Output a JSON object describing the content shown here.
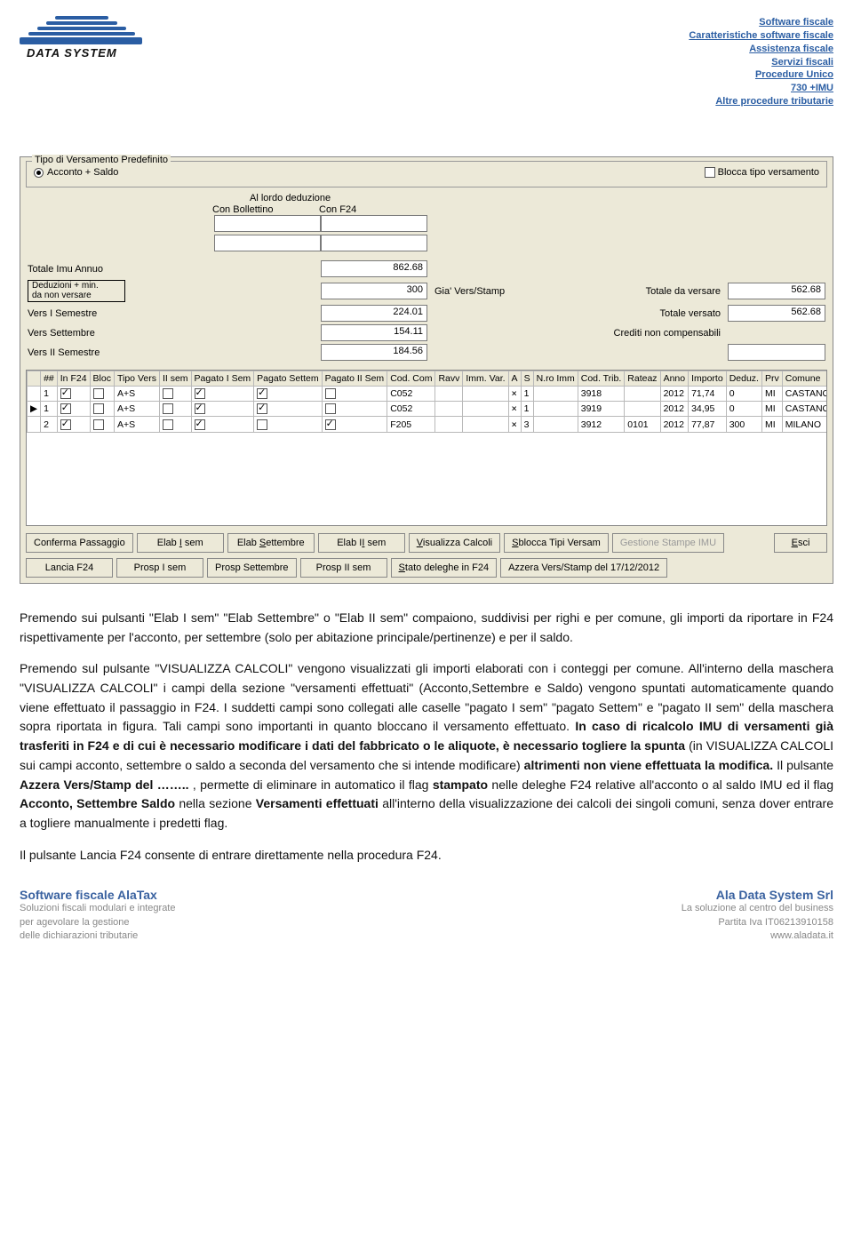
{
  "brand_color": "#2a5da3",
  "logo": {
    "label": "DATA SYSTEM"
  },
  "header_links": [
    "Software fiscale",
    "Caratteristiche software fiscale",
    "Assistenza fiscale",
    "Servizi fiscali",
    "Procedure Unico",
    "730 +IMU",
    "Altre procedure tributarie"
  ],
  "dialog": {
    "fieldset_legend": "Tipo di Versamento Predefinito",
    "radio_label": "Acconto + Saldo",
    "blocca_label": "Blocca tipo versamento",
    "deduzione_header": "Al lordo deduzione",
    "col_bollettino": "Con Bollettino",
    "col_f24": "Con F24",
    "rows": {
      "totale_imu": {
        "label": "Totale Imu Annuo",
        "f24": "862.68"
      },
      "deduzioni": {
        "label_l1": "Deduzioni + min.",
        "label_l2": "da non versare",
        "f24": "300",
        "gia": "Gia' Vers/Stamp",
        "totale_versare_lbl": "Totale da versare",
        "totale_versare_val": "562.68"
      },
      "vers1": {
        "label": "Vers I Semestre",
        "f24": "224.01",
        "totale_versato_lbl": "Totale versato",
        "totale_versato_val": "562.68"
      },
      "vers_set": {
        "label": "Vers Settembre",
        "f24": "154.11",
        "crediti_lbl": "Crediti non compensabili"
      },
      "vers2": {
        "label": "Vers II Semestre",
        "f24": "184.56"
      }
    },
    "table": {
      "headers": [
        "##",
        "In F24",
        "Bloc",
        "Tipo Vers",
        "II sem",
        "Pagato I Sem",
        "Pagato Settem",
        "Pagato II Sem",
        "Cod. Com",
        "Ravv",
        "Imm. Var.",
        "A",
        "S",
        "N.ro Imm",
        "Cod. Trib.",
        "Rateaz",
        "Anno",
        "Importo",
        "Deduz.",
        "Prv",
        "Comune"
      ],
      "rows": [
        {
          "ptr": "",
          "n": "1",
          "inF24": true,
          "bloc": false,
          "tipo": "A+S",
          "iiSem": false,
          "p1": true,
          "pS": true,
          "p2": false,
          "cod": "C052",
          "ravv": "",
          "immVar": "",
          "a": "×",
          "s": "1",
          "nroImm": "",
          "codTrib": "3918",
          "rateaz": "",
          "anno": "2012",
          "importo": "71,74",
          "deduz": "0",
          "prv": "MI",
          "comune": "CASTANO PRIMO"
        },
        {
          "ptr": "▶",
          "n": "1",
          "inF24": true,
          "bloc": false,
          "tipo": "A+S",
          "iiSem": false,
          "p1": true,
          "pS": true,
          "p2": false,
          "cod": "C052",
          "ravv": "",
          "immVar": "",
          "a": "×",
          "s": "1",
          "nroImm": "",
          "codTrib": "3919",
          "rateaz": "",
          "anno": "2012",
          "importo": "34,95",
          "deduz": "0",
          "prv": "MI",
          "comune": "CASTANO PRIMO"
        },
        {
          "ptr": "",
          "n": "2",
          "inF24": true,
          "bloc": false,
          "tipo": "A+S",
          "iiSem": false,
          "p1": true,
          "pS": false,
          "p2": true,
          "cod": "F205",
          "ravv": "",
          "immVar": "",
          "a": "×",
          "s": "3",
          "nroImm": "",
          "codTrib": "3912",
          "rateaz": "0101",
          "anno": "2012",
          "importo": "77,87",
          "deduz": "300",
          "prv": "MI",
          "comune": "MILANO"
        }
      ]
    },
    "buttons_row1": {
      "conferma": "Conferma Passaggio",
      "elab1": "Elab I sem",
      "elabS": "Elab Settembre",
      "elab2": "Elab II sem",
      "visualizza": "Visualizza Calcoli",
      "sblocca": "Sblocca Tipi Versam",
      "gestione": "Gestione Stampe IMU",
      "esci": "Esci"
    },
    "buttons_row2": {
      "lancia": "Lancia F24",
      "prosp1": "Prosp I sem",
      "prospS": "Prosp Settembre",
      "prosp2": "Prosp II sem",
      "stato": "Stato deleghe in F24",
      "azzera": "Azzera Vers/Stamp del 17/12/2012"
    }
  },
  "body": {
    "p1a": "Premendo sui pulsanti \"Elab I sem\" \"Elab Settembre\" o \"Elab II sem\" compaiono, suddivisi per righi e per comune, gli importi da riportare in F24 rispettivamente per l'acconto, per settembre (solo per abitazione principale/pertinenze) e per il saldo.",
    "p2a": "Premendo sul pulsante \"VISUALIZZA CALCOLI\" vengono visualizzati gli importi elaborati con i conteggi per comune. All'interno della maschera \"VISUALIZZA CALCOLI\" i campi della sezione \"versamenti effettuati\" (Acconto,Settembre e Saldo) vengono spuntati automaticamente quando viene effettuato il passaggio in F24. I suddetti campi sono collegati alle caselle \"pagato I sem\" \"pagato Settem\" e \"pagato II sem\" della maschera sopra riportata in figura. Tali campi sono importanti in quanto bloccano il versamento effettuato. ",
    "p2b": "In caso di ricalcolo IMU di versamenti già trasferiti in F24 e di cui è necessario modificare i dati del fabbricato o le aliquote, è necessario togliere la spunta",
    "p2c": " (in VISUALIZZA CALCOLI sui campi acconto, settembre o saldo a seconda del versamento che si intende modificare) ",
    "p2d": "altrimenti non viene effettuata la modifica.",
    "p2e": " Il pulsante ",
    "p2f": "Azzera Vers/Stamp del ……..",
    "p2g": ", permette di eliminare in automatico il flag ",
    "p2h": "stampato",
    "p2i": " nelle deleghe F24 relative all'acconto o al saldo IMU ed il flag ",
    "p2j": "Acconto, Settembre Saldo",
    "p2k": " nella sezione ",
    "p2l": "Versamenti effettuati",
    "p2m": " all'interno della visualizzazione dei calcoli dei singoli comuni, senza dover entrare a togliere manualmente i predetti flag.",
    "p3": "Il pulsante Lancia F24 consente di entrare direttamente nella procedura F24."
  },
  "footer": {
    "left": {
      "l1": "Software fiscale AlaTax",
      "l2": "Soluzioni fiscali modulari e integrate",
      "l3": "per agevolare la gestione",
      "l4": "delle dichiarazioni tributarie"
    },
    "right": {
      "l1": "Ala Data System Srl",
      "l2": "La soluzione al centro del business",
      "l3": "Partita Iva IT06213910158",
      "l4": "www.aladata.it"
    }
  }
}
